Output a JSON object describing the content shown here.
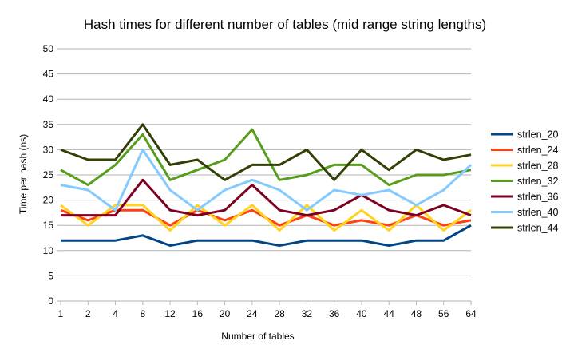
{
  "chart_data": {
    "type": "line",
    "title": "Hash times for different number of tables (mid range string lengths)",
    "xlabel": "Number of tables",
    "ylabel": "Time per hash (ns)",
    "ylim": [
      0,
      50
    ],
    "yticks": [
      0,
      5,
      10,
      15,
      20,
      25,
      30,
      35,
      40,
      45,
      50
    ],
    "grid": true,
    "legend_position": "right",
    "categories": [
      "1",
      "2",
      "4",
      "8",
      "12",
      "16",
      "20",
      "24",
      "28",
      "32",
      "36",
      "40",
      "44",
      "48",
      "56",
      "64"
    ],
    "series": [
      {
        "name": "strlen_20",
        "color": "#004586",
        "values": [
          12,
          12,
          12,
          13,
          11,
          12,
          12,
          12,
          11,
          12,
          12,
          12,
          11,
          12,
          12,
          15
        ]
      },
      {
        "name": "strlen_24",
        "color": "#ff420e",
        "values": [
          18,
          16,
          18,
          18,
          15,
          18,
          16,
          18,
          15,
          17,
          15,
          16,
          15,
          17,
          15,
          16
        ]
      },
      {
        "name": "strlen_28",
        "color": "#ffd320",
        "values": [
          19,
          15,
          19,
          19,
          14,
          19,
          15,
          19,
          14,
          19,
          14,
          18,
          14,
          19,
          14,
          18
        ]
      },
      {
        "name": "strlen_32",
        "color": "#579d1c",
        "values": [
          26,
          23,
          27,
          33,
          24,
          26,
          28,
          34,
          24,
          25,
          27,
          27,
          23,
          25,
          25,
          26
        ]
      },
      {
        "name": "strlen_36",
        "color": "#7e0021",
        "values": [
          17,
          17,
          17,
          24,
          18,
          17,
          18,
          23,
          18,
          17,
          18,
          21,
          18,
          17,
          19,
          17
        ]
      },
      {
        "name": "strlen_40",
        "color": "#83caff",
        "values": [
          23,
          22,
          18,
          30,
          22,
          18,
          22,
          24,
          22,
          18,
          22,
          21,
          22,
          19,
          22,
          27
        ]
      },
      {
        "name": "strlen_44",
        "color": "#314004",
        "values": [
          30,
          28,
          28,
          35,
          27,
          28,
          24,
          27,
          27,
          30,
          24,
          30,
          26,
          30,
          28,
          29
        ]
      }
    ]
  }
}
